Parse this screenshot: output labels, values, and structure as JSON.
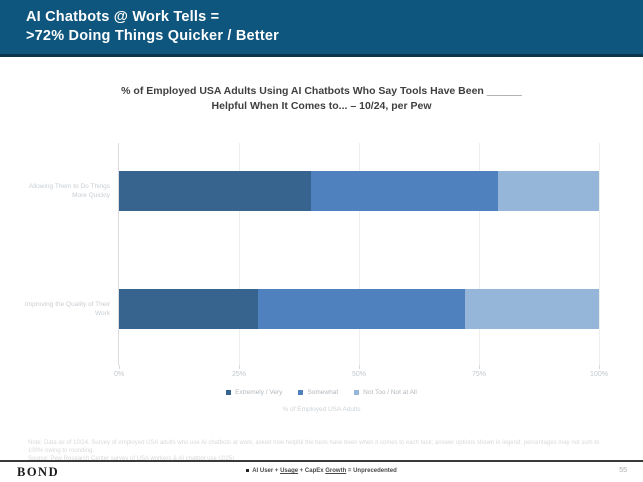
{
  "header": {
    "bg_color": "#0e567d",
    "title_lines": [
      "AI Chatbots @ Work Tells =",
      ">72% Doing Things Quicker / Better"
    ]
  },
  "chart": {
    "title_lines": [
      "% of Employed USA Adults Using AI Chatbots Who Say Tools Have Been ______",
      "Helpful When It Comes to... – 10/24, per Pew"
    ]
  },
  "chart_data": {
    "type": "bar",
    "orientation": "horizontal",
    "stacked": true,
    "title": "% of Employed USA Adults Using AI Chatbots Who Say Tools Have Been ______ Helpful When It Comes to... – 10/24, per Pew",
    "categories": [
      "Allowing Them to Do Things More Quickly",
      "Improving the Quality of Their Work"
    ],
    "series": [
      {
        "name": "Extremely / Very",
        "color": "#36648f",
        "values": [
          40,
          29
        ]
      },
      {
        "name": "Somewhat",
        "color": "#4e81bd",
        "values": [
          39,
          43
        ]
      },
      {
        "name": "Not Too / Not at All",
        "color": "#95b6d9",
        "values": [
          21,
          28
        ]
      }
    ],
    "xlabel": "% of Employed USA Adults",
    "xlim": [
      0,
      100
    ],
    "x_ticks": [
      "0%",
      "25%",
      "50%",
      "75%",
      "100%"
    ],
    "tick_positions": [
      0,
      25,
      50,
      75,
      100
    ],
    "legend_position": "bottom",
    "grid": true
  },
  "footnote": {
    "line1": "Note: Data as of 10/24. Survey of employed USA adults who use AI chatbots at work, asked how helpful the tools have been when it comes to each task; answer options shown in legend; percentages may not sum to 100% owing to rounding.",
    "line2": "Source: Pew Research Center survey of USA workers & AI chatbot use (2/25)"
  },
  "footer": {
    "logo": "BOND",
    "center_parts": [
      {
        "text": "AI User + "
      },
      {
        "text": "Usage",
        "u": true
      },
      {
        "text": " + CapEx "
      },
      {
        "text": "Growth",
        "u": true
      },
      {
        "text": " = Unprecedented"
      }
    ],
    "page": "55"
  }
}
